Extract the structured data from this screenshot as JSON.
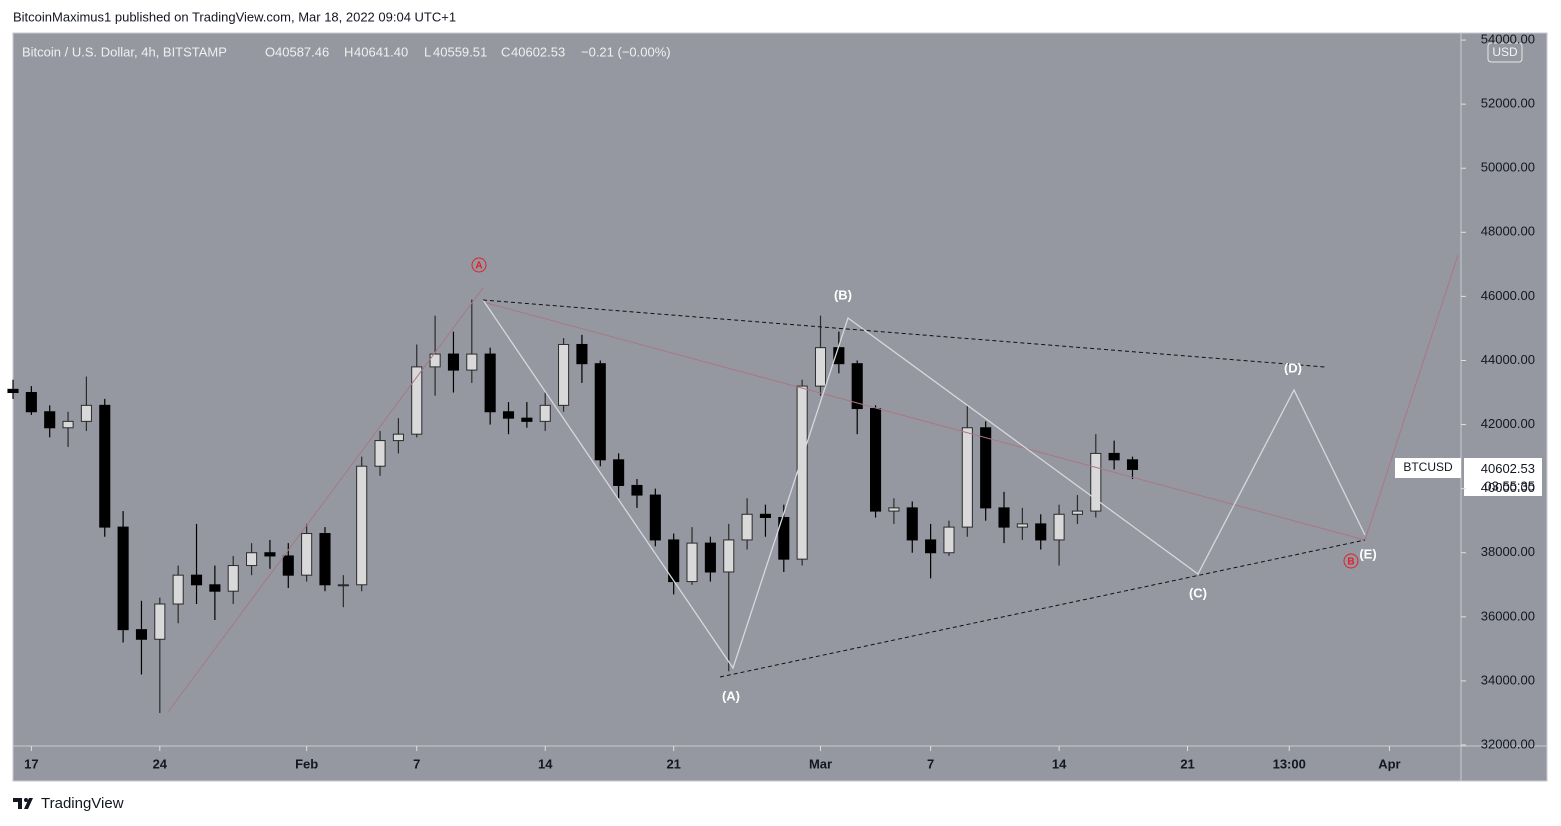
{
  "chart_data": {
    "type": "candlestick",
    "subtitle": "BitcoinMaximus1 published on TradingView.com, Mar 18, 2022 09:04 UTC+1",
    "title": "Bitcoin / U.S. Dollar, 4h, BITSTAMP",
    "ohlc_legend": [
      {
        "label": "O",
        "value": {
          "value": 40587.46,
          "label": "40587.46"
        }
      },
      {
        "label": "H",
        "value": {
          "value": 40641.4,
          "label": "40641.40"
        }
      },
      {
        "label": "L",
        "value": {
          "value": 40559.51,
          "label": "40559.51"
        }
      },
      {
        "label": "C",
        "value": {
          "value": 40602.53,
          "label": "40602.53"
        }
      }
    ],
    "change": "−0.21 (−0.00%)",
    "currency": "USD",
    "symbol": "BTCUSD",
    "last_price": 40602.53,
    "countdown": "03:55:35",
    "brand": "TradingView",
    "wave_labels": [
      "(A)",
      "(B)",
      "(C)",
      "(D)",
      "(E)"
    ],
    "circled_labels": [
      "A",
      "B"
    ],
    "color_up": "#2b2b2b",
    "color_down": "#000000",
    "x": [
      -1,
      0,
      1,
      2,
      3,
      4,
      5,
      6,
      7,
      8,
      9,
      10,
      11,
      12,
      13,
      14,
      15,
      16,
      17,
      18,
      19,
      20,
      21,
      22,
      23,
      24,
      25,
      26,
      27,
      28,
      29,
      30,
      31,
      32,
      33,
      34,
      35,
      36,
      37,
      38,
      39,
      40,
      41,
      42,
      43,
      44,
      45,
      46,
      47,
      48,
      49,
      50,
      51,
      52,
      53,
      54,
      55,
      56,
      57,
      58,
      59,
      60
    ],
    "open": [
      43100,
      43000,
      42400,
      41900,
      42100,
      42600,
      38800,
      35600,
      35300,
      36400,
      37300,
      37000,
      36800,
      37600,
      38000,
      37900,
      37300,
      38600,
      37000,
      37000,
      40700,
      41500,
      41700,
      43800,
      44200,
      43700,
      44200,
      42400,
      42200,
      42100,
      42600,
      44500,
      43900,
      40900,
      40100,
      39800,
      38400,
      37100,
      38300,
      37400,
      38400,
      39200,
      39100,
      37800,
      43200,
      44400,
      43900,
      42500,
      39300,
      39400,
      38400,
      38000,
      38800,
      41900,
      39400,
      38800,
      38900,
      38400,
      39200,
      39300,
      41100,
      40900
    ],
    "high": [
      43400,
      43200,
      42600,
      42400,
      43500,
      42800,
      39300,
      36500,
      36600,
      37600,
      38900,
      37600,
      37900,
      38300,
      38400,
      38300,
      38900,
      38800,
      37300,
      41000,
      41800,
      42200,
      44500,
      45400,
      44900,
      45900,
      44400,
      42700,
      42700,
      43000,
      44700,
      44800,
      44000,
      41100,
      40300,
      40000,
      38600,
      38800,
      38500,
      38900,
      39700,
      39500,
      39500,
      43400,
      45400,
      44900,
      44000,
      42600,
      39700,
      39600,
      38900,
      39000,
      42600,
      42100,
      39900,
      39400,
      39200,
      39500,
      39800,
      41700,
      41500,
      41000
    ],
    "low": [
      42800,
      42300,
      41600,
      41300,
      41800,
      38500,
      35200,
      34200,
      33000,
      35800,
      36400,
      35900,
      36400,
      37300,
      37500,
      36900,
      37100,
      36800,
      36300,
      36800,
      40400,
      41100,
      41600,
      42900,
      43000,
      43300,
      42000,
      41700,
      41900,
      41800,
      42400,
      43300,
      40700,
      39700,
      39400,
      38200,
      36700,
      37000,
      37100,
      34300,
      38100,
      38500,
      37400,
      37600,
      42900,
      43600,
      41700,
      39100,
      38900,
      38000,
      37200,
      37900,
      38500,
      39000,
      38300,
      38400,
      38100,
      37600,
      38900,
      39100,
      40600,
      40300
    ],
    "close": [
      43000,
      42400,
      41900,
      42100,
      42600,
      38800,
      35600,
      35300,
      36400,
      37300,
      37000,
      36800,
      37600,
      38000,
      37900,
      37300,
      38600,
      37000,
      37000,
      40700,
      41500,
      41700,
      43800,
      44200,
      43700,
      44200,
      42400,
      42200,
      42100,
      42600,
      44500,
      43900,
      40900,
      40100,
      39800,
      38400,
      37100,
      38300,
      37400,
      38400,
      39200,
      39100,
      37800,
      43200,
      44400,
      43900,
      42500,
      39300,
      39400,
      38400,
      38000,
      38800,
      41900,
      39400,
      38800,
      38900,
      38400,
      39200,
      39300,
      41100,
      40900,
      40600
    ],
    "xlim": [
      -1,
      77.9
    ],
    "xticks": [
      {
        "value": 0,
        "label": "17"
      },
      {
        "value": 7,
        "label": "24"
      },
      {
        "value": 15,
        "label": "Feb"
      },
      {
        "value": 21,
        "label": "7"
      },
      {
        "value": 28,
        "label": "14"
      },
      {
        "value": 35,
        "label": "21"
      },
      {
        "value": 43,
        "label": "Mar"
      },
      {
        "value": 49,
        "label": "7"
      },
      {
        "value": 56,
        "label": "14"
      },
      {
        "value": 63,
        "label": "21"
      },
      {
        "value": 68.54,
        "label": "13:00"
      },
      {
        "value": 74,
        "label": "Apr"
      }
    ],
    "ylim": [
      32000,
      54220
    ],
    "yticks": [
      {
        "value": 32000,
        "label": "32000.00"
      },
      {
        "value": 34000,
        "label": "34000.00"
      },
      {
        "value": 36000,
        "label": "36000.00"
      },
      {
        "value": 38000,
        "label": "38000.00"
      },
      {
        "value": 40000,
        "label": "40000.00"
      },
      {
        "value": 42000,
        "label": "42000.00"
      },
      {
        "value": 44000,
        "label": "44000.00"
      },
      {
        "value": 46000,
        "label": "46000.00"
      },
      {
        "value": 48000,
        "label": "48000.00"
      },
      {
        "value": 50000,
        "label": "50000.00"
      },
      {
        "value": 52000,
        "label": "52000.00"
      },
      {
        "value": 54000,
        "label": "54000.00"
      }
    ]
  }
}
